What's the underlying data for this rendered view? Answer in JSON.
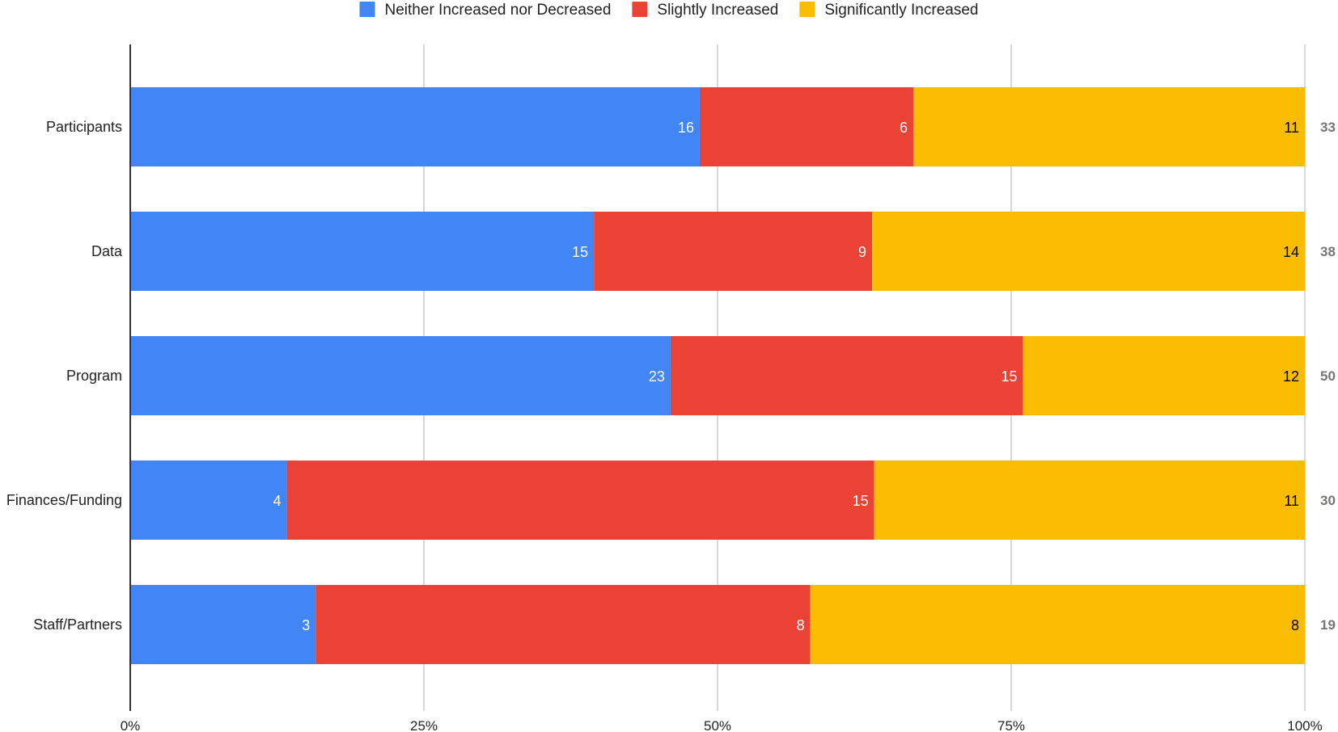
{
  "chart_data": {
    "type": "bar",
    "orientation": "horizontal",
    "stacking": "percent",
    "title": "",
    "xlabel": "",
    "ylabel": "",
    "xlim": [
      0,
      1
    ],
    "x_ticks": [
      "0%",
      "25%",
      "50%",
      "75%",
      "100%"
    ],
    "legend_position": "top",
    "grid": true,
    "categories": [
      "Participants",
      "Data",
      "Program",
      "Finances/Funding",
      "Staff/Partners"
    ],
    "series": [
      {
        "name": "Neither Increased nor Decreased",
        "color": "#4285F4",
        "label_color": "#ffffff",
        "values": [
          16,
          15,
          23,
          4,
          3
        ]
      },
      {
        "name": "Slightly Increased",
        "color": "#EA4335",
        "label_color": "#ffffff",
        "values": [
          6,
          9,
          15,
          15,
          8
        ]
      },
      {
        "name": "Significantly Increased",
        "color": "#FBBC04",
        "label_color": "#000000",
        "values": [
          11,
          14,
          12,
          11,
          8
        ]
      }
    ],
    "totals": [
      "33",
      "38",
      "50",
      "30",
      "19"
    ]
  }
}
